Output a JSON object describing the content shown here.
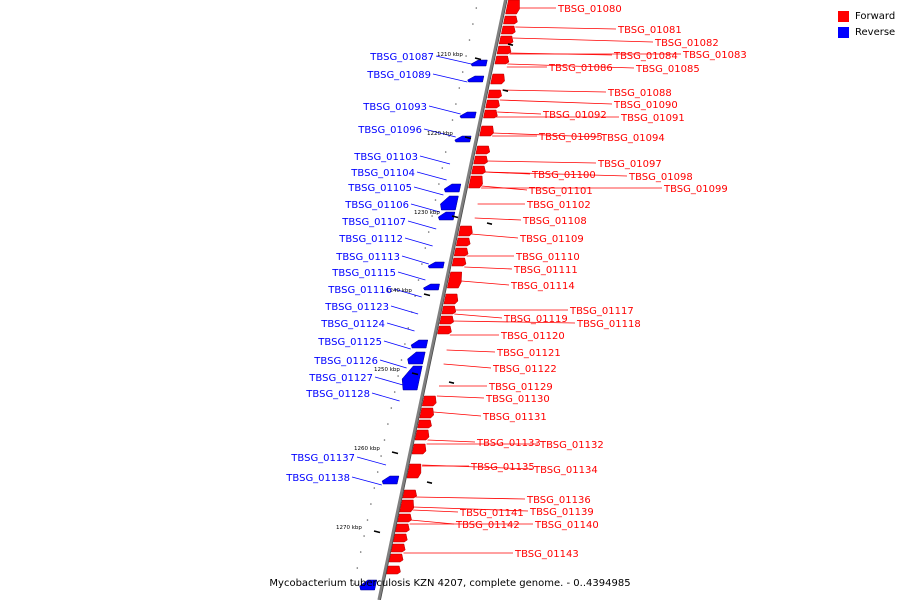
{
  "caption": "Mycobacterium tuberculosis KZN 4207, complete genome. - 0..4394985",
  "legend": [
    {
      "label": "Forward",
      "color": "#ff0000"
    },
    {
      "label": "Reverse",
      "color": "#0000ff"
    }
  ],
  "colors": {
    "forward": "#ff0000",
    "reverse": "#0000ff",
    "backbone": "#808080",
    "tick": "#000000"
  },
  "chart_data": {
    "type": "genome-map",
    "ticks": [
      "1210 kbp",
      "1220 kbp",
      "1230 kbp",
      "1240 kbp",
      "1250 kbp",
      "1260 kbp",
      "1270 kbp"
    ],
    "forward_genes": [
      "TBSG_01080",
      "TBSG_01081",
      "TBSG_01082",
      "TBSG_01083",
      "TBSG_01084",
      "TBSG_01085",
      "TBSG_01086",
      "TBSG_01088",
      "TBSG_01090",
      "TBSG_01091",
      "TBSG_01092",
      "TBSG_01094",
      "TBSG_01095",
      "TBSG_01097",
      "TBSG_01098",
      "TBSG_01099",
      "TBSG_01100",
      "TBSG_01101",
      "TBSG_01102",
      "TBSG_01108",
      "TBSG_01109",
      "TBSG_01110",
      "TBSG_01111",
      "TBSG_01114",
      "TBSG_01117",
      "TBSG_01118",
      "TBSG_01119",
      "TBSG_01120",
      "TBSG_01121",
      "TBSG_01122",
      "TBSG_01129",
      "TBSG_01130",
      "TBSG_01131",
      "TBSG_01132",
      "TBSG_01133",
      "TBSG_01134",
      "TBSG_01135",
      "TBSG_01136",
      "TBSG_01139",
      "TBSG_01140",
      "TBSG_01141",
      "TBSG_01142",
      "TBSG_01143"
    ],
    "reverse_genes": [
      "TBSG_01087",
      "TBSG_01089",
      "TBSG_01093",
      "TBSG_01096",
      "TBSG_01103",
      "TBSG_01104",
      "TBSG_01105",
      "TBSG_01106",
      "TBSG_01107",
      "TBSG_01112",
      "TBSG_01113",
      "TBSG_01115",
      "TBSG_01116",
      "TBSG_01123",
      "TBSG_01124",
      "TBSG_01125",
      "TBSG_01126",
      "TBSG_01127",
      "TBSG_01128",
      "TBSG_01137",
      "TBSG_01138"
    ]
  }
}
